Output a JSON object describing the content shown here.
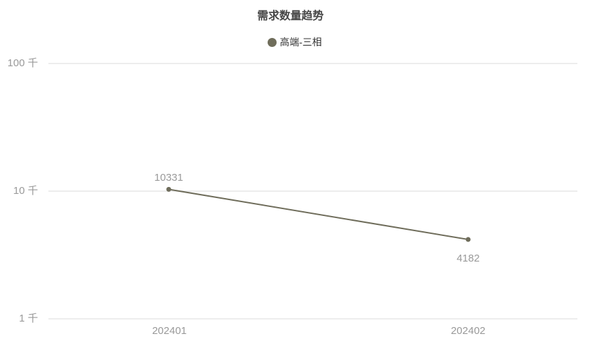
{
  "chart_data": {
    "type": "line",
    "title": "需求数量趋势",
    "legend": [
      {
        "label": "高端-三相",
        "color": "#6f6d5b"
      }
    ],
    "x": [
      "202401",
      "202402"
    ],
    "series": [
      {
        "name": "高端-三相",
        "values": [
          10331,
          4182
        ]
      }
    ],
    "yaxis": {
      "scale": "log",
      "unit": "千",
      "ticks": [
        "100 千",
        "10 千",
        "1 千"
      ],
      "tick_values": [
        100000,
        10000,
        1000
      ],
      "range": [
        1000,
        100000
      ]
    },
    "grid": true,
    "legend_position": "top-center",
    "colors": {
      "series": "#6f6d5b",
      "grid": "#ededed",
      "axis_label": "#999999",
      "title": "#464646",
      "legend_text": "#333333",
      "background": "#ffffff"
    }
  }
}
